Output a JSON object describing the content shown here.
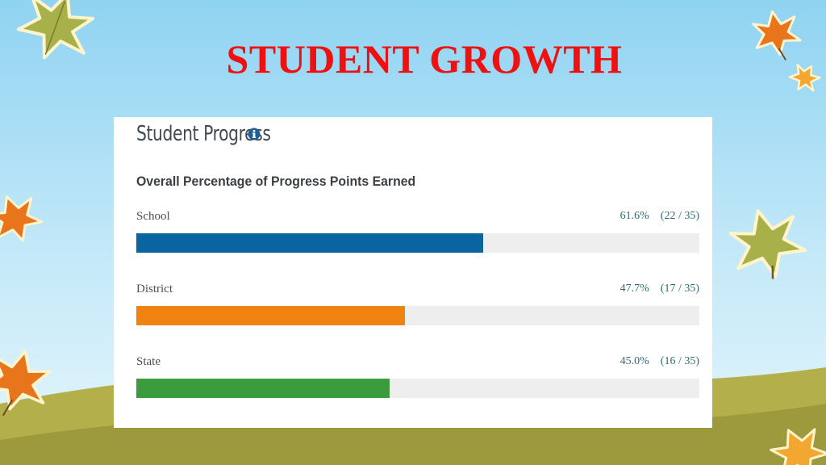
{
  "slide": {
    "title": "STUDENT GROWTH"
  },
  "card": {
    "title": "Student Progress",
    "subtitle": "Overall Percentage of Progress Points Earned",
    "info_icon": "info-icon"
  },
  "colors": {
    "title_red": "#ee1111",
    "school_blue": "#0a64a0",
    "district_orange": "#f0820f",
    "state_green": "#3c9b3c",
    "track_gray": "#eeeeee"
  },
  "chart_data": {
    "type": "bar",
    "orientation": "horizontal",
    "title": "Overall Percentage of Progress Points Earned",
    "xlim": [
      0,
      100
    ],
    "grid": false,
    "categories": [
      "School",
      "District",
      "State"
    ],
    "values": [
      61.6,
      47.7,
      45.0
    ],
    "rows": [
      {
        "label": "School",
        "percent_text": "61.6%",
        "count_text": "(22 / 35)",
        "percent": 61.6,
        "earned": 22,
        "possible": 35,
        "color": "#0a64a0"
      },
      {
        "label": "District",
        "percent_text": "47.7%",
        "count_text": "(17 / 35)",
        "percent": 47.7,
        "earned": 17,
        "possible": 35,
        "color": "#f0820f"
      },
      {
        "label": "State",
        "percent_text": "45.0%",
        "count_text": "(16 / 35)",
        "percent": 45.0,
        "earned": 16,
        "possible": 35,
        "color": "#3c9b3c"
      }
    ]
  }
}
